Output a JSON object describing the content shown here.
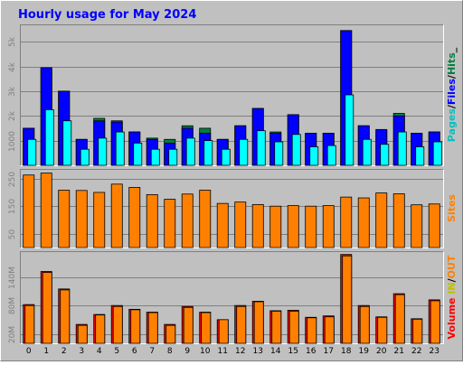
{
  "title": "Hourly usage for May 2024",
  "chart_data": [
    {
      "type": "bar",
      "panel": "hits",
      "categories": [
        "0",
        "1",
        "2",
        "3",
        "4",
        "5",
        "6",
        "7",
        "8",
        "9",
        "10",
        "11",
        "12",
        "13",
        "14",
        "15",
        "16",
        "17",
        "18",
        "19",
        "20",
        "21",
        "22",
        "23"
      ],
      "series": [
        {
          "name": "Hits",
          "color": "#008040",
          "values": [
            1500,
            3950,
            3000,
            1050,
            1900,
            1800,
            1350,
            1100,
            1050,
            1600,
            1500,
            1050,
            1600,
            2300,
            1350,
            2050,
            1300,
            1300,
            5450,
            1600,
            1400,
            2100,
            1300,
            1350
          ]
        },
        {
          "name": "Files",
          "color": "#0000ff",
          "values": [
            1500,
            3950,
            3000,
            1050,
            1800,
            1750,
            1350,
            1050,
            900,
            1500,
            1300,
            1050,
            1600,
            2300,
            1300,
            2050,
            1300,
            1300,
            5450,
            1600,
            1450,
            2000,
            1300,
            1350
          ]
        },
        {
          "name": "Pages",
          "color": "#00ffff",
          "values": [
            1050,
            2250,
            1800,
            650,
            1100,
            1350,
            900,
            650,
            650,
            1100,
            1000,
            650,
            1050,
            1400,
            950,
            1250,
            750,
            800,
            2850,
            1050,
            850,
            1350,
            750,
            950
          ]
        }
      ],
      "ylim": [
        0,
        5700
      ],
      "ticks": [
        "1000",
        "2k",
        "3k",
        "4k",
        "5k"
      ],
      "ylabel_parts": [
        "Pages",
        "/",
        "Files",
        "/",
        "Hits",
        "_"
      ]
    },
    {
      "type": "bar",
      "panel": "sites",
      "categories": [
        "0",
        "1",
        "2",
        "3",
        "4",
        "5",
        "6",
        "7",
        "8",
        "9",
        "10",
        "11",
        "12",
        "13",
        "14",
        "15",
        "16",
        "17",
        "18",
        "19",
        "20",
        "21",
        "22",
        "23"
      ],
      "series": [
        {
          "name": "Sites",
          "color": "#ff8000",
          "values": [
            263,
            270,
            208,
            207,
            200,
            230,
            218,
            192,
            175,
            194,
            208,
            160,
            165,
            156,
            150,
            152,
            150,
            152,
            183,
            180,
            198,
            195,
            155,
            158
          ]
        }
      ],
      "ylim": [
        0,
        285
      ],
      "ticks": [
        "50",
        "150",
        "250"
      ],
      "ylabel_parts": [
        "Sites"
      ]
    },
    {
      "type": "bar",
      "panel": "volume",
      "categories": [
        "0",
        "1",
        "2",
        "3",
        "4",
        "5",
        "6",
        "7",
        "8",
        "9",
        "10",
        "11",
        "12",
        "13",
        "14",
        "15",
        "16",
        "17",
        "18",
        "19",
        "20",
        "21",
        "22",
        "23"
      ],
      "series": [
        {
          "name": "IN",
          "color": "#ff0000",
          "values": [
            82,
            152,
            115,
            40,
            61,
            80,
            72,
            66,
            40,
            78,
            66,
            50,
            80,
            89,
            69,
            70,
            55,
            58,
            188,
            80,
            56,
            105,
            52,
            92
          ]
        },
        {
          "name": "OUT",
          "color": "#ff8000",
          "values": [
            80,
            150,
            113,
            38,
            60,
            78,
            71,
            65,
            38,
            76,
            65,
            50,
            78,
            88,
            68,
            68,
            54,
            56,
            185,
            78,
            55,
            103,
            51,
            90
          ]
        }
      ],
      "ylim": [
        0,
        195
      ],
      "ticks": [
        "20M",
        "80M",
        "140M"
      ],
      "ylabel_parts": [
        "Volume",
        " ",
        "IN",
        "/",
        "OUT"
      ]
    }
  ],
  "colors": {
    "background": "#c0c0c0",
    "title": "#0000ff",
    "tick_text": "#808080",
    "grid": "#808080",
    "axis_label_hits": [
      "#00c0c0",
      "#000000",
      "#0000ff",
      "#000000",
      "#008040",
      "#000000"
    ],
    "axis_label_sites": [
      "#ff8000"
    ],
    "axis_label_volume": [
      "#ff0000",
      "#000000",
      "#c0c000",
      "#000000",
      "#ff8000"
    ]
  }
}
